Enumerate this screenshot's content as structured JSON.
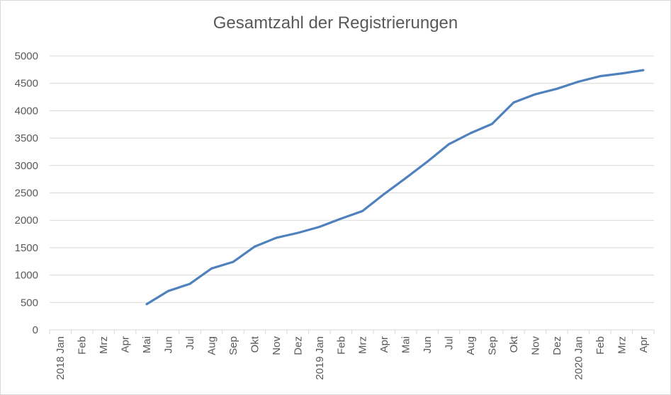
{
  "chart_data": {
    "type": "line",
    "title": "Gesamtzahl der Registrierungen",
    "xlabel": "",
    "ylabel": "",
    "categories": [
      "2018 Jan",
      "Feb",
      "Mrz",
      "Apr",
      "Mai",
      "Jun",
      "Jul",
      "Aug",
      "Sep",
      "Okt",
      "Nov",
      "Dez",
      "2019 Jan",
      "Feb",
      "Mrz",
      "Apr",
      "Mai",
      "Jun",
      "Jul",
      "Aug",
      "Sep",
      "Okt",
      "Nov",
      "Dez",
      "2020 Jan",
      "Feb",
      "Mrz",
      "Apr"
    ],
    "series": [
      {
        "values": [
          null,
          null,
          null,
          null,
          470,
          710,
          840,
          1120,
          1240,
          1520,
          1680,
          1770,
          1880,
          2030,
          2170,
          2480,
          2770,
          3070,
          3390,
          3590,
          3760,
          4150,
          4300,
          4400,
          4530,
          4630,
          4680,
          4740
        ]
      }
    ],
    "ylim": [
      0,
      5000
    ],
    "yticks": [
      0,
      500,
      1000,
      1500,
      2000,
      2500,
      3000,
      3500,
      4000,
      4500,
      5000
    ],
    "grid": true,
    "legend": "none",
    "line_color": "#4f81bd"
  }
}
